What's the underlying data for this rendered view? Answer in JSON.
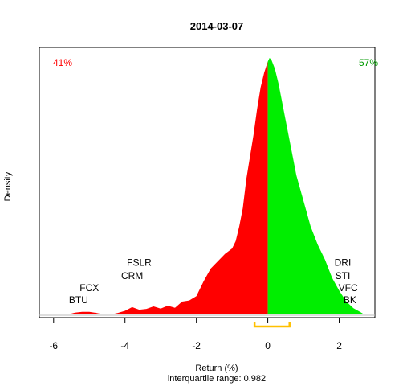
{
  "chart_data": {
    "type": "area",
    "title": "2014-03-07",
    "xlabel": "Return (%)",
    "ylabel": "Density",
    "subtitle": "interquartile range: 0.982",
    "xlim": [
      -6.4,
      3.0
    ],
    "ylim": [
      0,
      0.7
    ],
    "xticks": [
      -6,
      -4,
      -2,
      0,
      2
    ],
    "xtick_labels": [
      "-6",
      "-4",
      "-2",
      "0",
      "2"
    ],
    "grid": false,
    "legend": "none",
    "colors": {
      "negative": "#ff0000",
      "positive": "#00ee00",
      "iqr": "#ffc000",
      "baseline": "#bebebe"
    },
    "share_negative": "41%",
    "share_positive": "57%",
    "interquartile_range": {
      "low": -0.37,
      "high": 0.61,
      "value": 0.982
    },
    "density": {
      "x": [
        -5.6,
        -5.4,
        -5.2,
        -5.0,
        -4.8,
        -4.6,
        -4.4,
        -4.2,
        -4.0,
        -3.8,
        -3.6,
        -3.4,
        -3.2,
        -3.0,
        -2.8,
        -2.6,
        -2.4,
        -2.2,
        -2.0,
        -1.8,
        -1.6,
        -1.4,
        -1.2,
        -1.0,
        -0.9,
        -0.8,
        -0.7,
        -0.6,
        -0.5,
        -0.4,
        -0.3,
        -0.2,
        -0.1,
        0.0,
        0.05,
        0.1,
        0.2,
        0.3,
        0.4,
        0.5,
        0.6,
        0.7,
        0.8,
        1.0,
        1.2,
        1.4,
        1.6,
        1.8,
        2.0,
        2.2,
        2.4,
        2.6,
        2.7
      ],
      "y": [
        0.0,
        0.005,
        0.007,
        0.007,
        0.004,
        0.0,
        0.0,
        0.004,
        0.01,
        0.02,
        0.013,
        0.015,
        0.022,
        0.016,
        0.024,
        0.018,
        0.035,
        0.038,
        0.05,
        0.09,
        0.125,
        0.145,
        0.165,
        0.18,
        0.2,
        0.24,
        0.29,
        0.37,
        0.43,
        0.49,
        0.56,
        0.62,
        0.66,
        0.69,
        0.7,
        0.695,
        0.67,
        0.63,
        0.58,
        0.53,
        0.48,
        0.43,
        0.38,
        0.31,
        0.24,
        0.19,
        0.15,
        0.1,
        0.065,
        0.035,
        0.017,
        0.006,
        0.0
      ]
    },
    "annotations": [
      {
        "label": "FSLR",
        "x": -3.6,
        "y": 0.133
      },
      {
        "label": "CRM",
        "x": -3.8,
        "y": 0.097
      },
      {
        "label": "FCX",
        "x": -5.0,
        "y": 0.064
      },
      {
        "label": "BTU",
        "x": -5.3,
        "y": 0.031
      },
      {
        "label": "DRI",
        "x": 2.1,
        "y": 0.133
      },
      {
        "label": "STI",
        "x": 2.1,
        "y": 0.097
      },
      {
        "label": "VFC",
        "x": 2.25,
        "y": 0.064
      },
      {
        "label": "BK",
        "x": 2.3,
        "y": 0.031
      }
    ]
  }
}
